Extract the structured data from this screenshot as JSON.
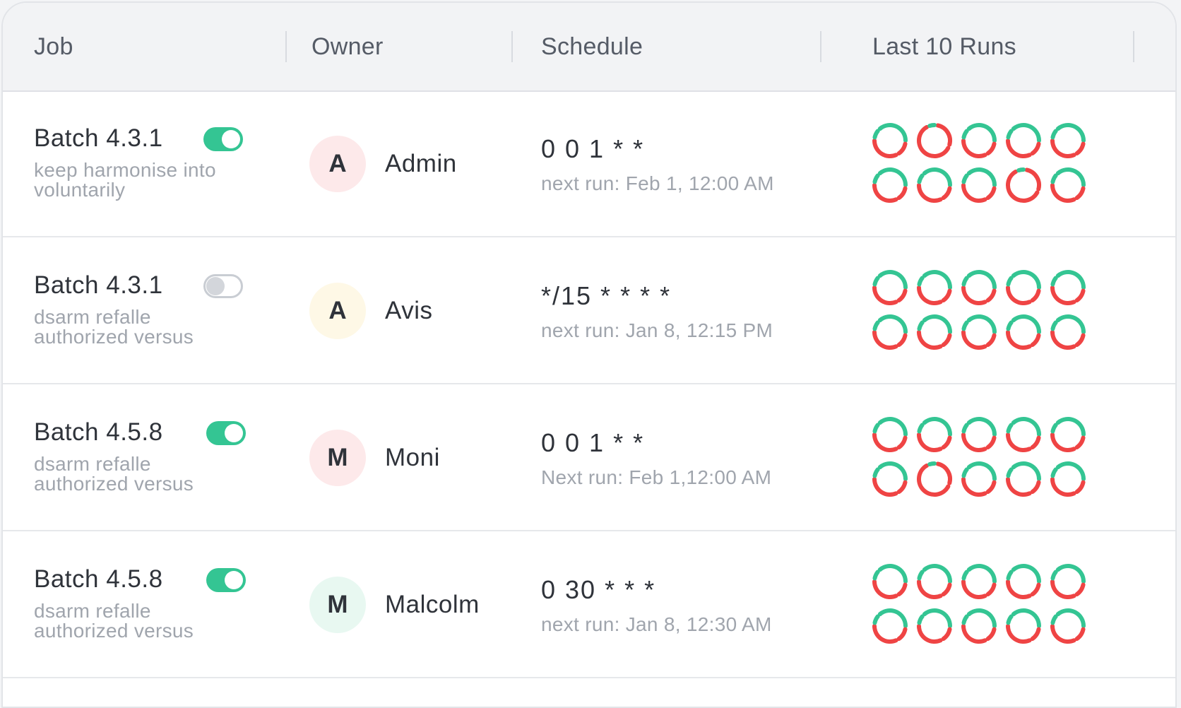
{
  "colors": {
    "success": "#34c593",
    "failure": "#ef4444",
    "toggle_on": "#34c593"
  },
  "header": {
    "job": "Job",
    "owner": "Owner",
    "schedule": "Schedule",
    "last_runs": "Last 10 Runs"
  },
  "rows": [
    {
      "job_name": "Batch 4.3.1",
      "job_desc": "keep harmonise into voluntarily",
      "enabled": true,
      "avatar_letter": "A",
      "avatar_bg": "#fde9ea",
      "owner": "Admin",
      "cron": "0 0 1 * *",
      "next_run": "next run: Feb 1, 12:00 AM",
      "runs": [
        "mixed",
        "fail",
        "mixed",
        "mixed",
        "mixed",
        "mixed",
        "mixed",
        "mixed",
        "fail",
        "mixed"
      ]
    },
    {
      "job_name": "Batch 4.3.1",
      "job_desc": "dsarm refalle authorized versus",
      "enabled": false,
      "avatar_letter": "A",
      "avatar_bg": "#fef8e6",
      "owner": "Avis",
      "cron": "*/15 * * * *",
      "next_run": "next run: Jan 8, 12:15 PM",
      "runs": [
        "mixed",
        "mixed",
        "mixed",
        "mixed",
        "mixed",
        "mixed",
        "mixed",
        "mixed",
        "mixed",
        "mixed"
      ]
    },
    {
      "job_name": "Batch 4.5.8",
      "job_desc": "dsarm refalle authorized versus",
      "enabled": true,
      "avatar_letter": "M",
      "avatar_bg": "#fde9ea",
      "owner": "Moni",
      "cron": "0 0 1 * *",
      "next_run": "Next run: Feb 1,12:00 AM",
      "runs": [
        "mixed",
        "mixed",
        "mixed",
        "mixed",
        "mixed",
        "mixed",
        "fail",
        "mixed",
        "mixed",
        "mixed"
      ]
    },
    {
      "job_name": "Batch 4.5.8",
      "job_desc": "dsarm refalle authorized versus",
      "enabled": true,
      "avatar_letter": "M",
      "avatar_bg": "#e8f8f1",
      "owner": "Malcolm",
      "cron": "0 30 * * *",
      "next_run": "next run: Jan 8, 12:30 AM",
      "runs": [
        "mixed",
        "mixed",
        "mixed",
        "mixed",
        "mixed",
        "mixed",
        "mixed",
        "mixed",
        "mixed",
        "mixed"
      ]
    }
  ]
}
